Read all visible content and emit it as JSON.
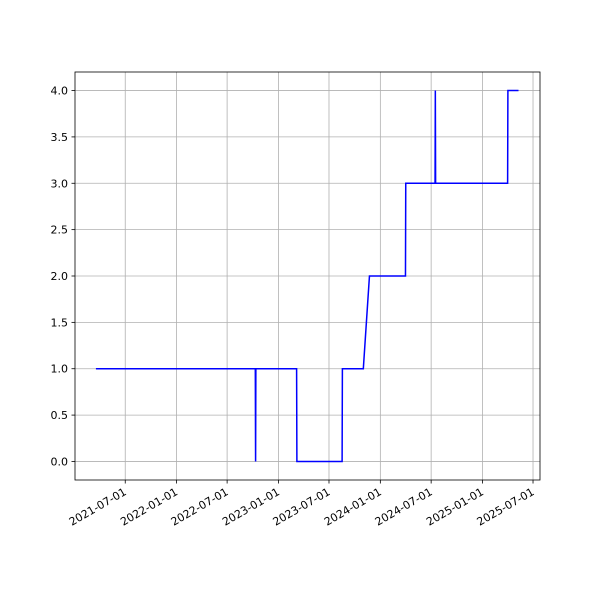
{
  "chart_data": {
    "type": "line",
    "x": [
      "2021-03-18",
      "2022-10-10",
      "2022-10-11",
      "2022-10-12",
      "2023-03-07",
      "2023-03-08",
      "2023-08-17",
      "2023-08-18",
      "2023-11-01",
      "2023-11-23",
      "2024-03-31",
      "2024-04-01",
      "2024-07-15",
      "2024-07-16",
      "2024-07-17",
      "2025-04-01",
      "2025-04-02",
      "2025-05-10"
    ],
    "values": [
      1,
      1,
      0,
      1,
      1,
      0,
      0,
      1,
      1,
      2,
      2,
      3,
      3,
      4,
      3,
      3,
      4,
      4
    ],
    "color": "#0000ff",
    "xlim": [
      "2021-01-02",
      "2025-07-26"
    ],
    "xticks": [
      "2021-07-01",
      "2022-01-01",
      "2022-07-01",
      "2023-01-01",
      "2023-07-01",
      "2024-01-01",
      "2024-07-01",
      "2025-01-01",
      "2025-07-01"
    ],
    "ylim": [
      -0.2,
      4.2
    ],
    "yticks": [
      {
        "value": 0,
        "label": "0.0"
      },
      0.5,
      {
        "value": 1,
        "label": "1.0"
      },
      1.5,
      {
        "value": 2,
        "label": "2.0"
      },
      2.5,
      {
        "value": 3,
        "label": "3.0"
      },
      3.5,
      {
        "value": 4,
        "label": "4.0"
      }
    ],
    "grid": true
  }
}
